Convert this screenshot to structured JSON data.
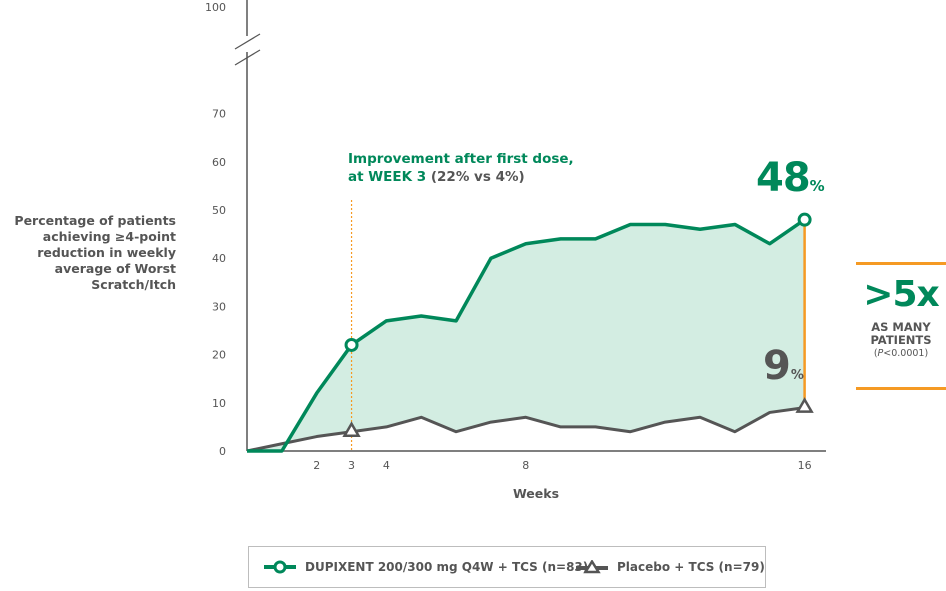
{
  "colors": {
    "dupixent": "#00885a",
    "placebo": "#555555",
    "fill": "#d3ede2",
    "accent": "#f59a23",
    "axis": "#555555"
  },
  "annotation": {
    "line1": "Improvement after first dose,",
    "line2_green": "at WEEK 3",
    "line2_gray": "(22% vs 4%)"
  },
  "end_values": {
    "dupixent_value": "48",
    "placebo_value": "9",
    "percent": "%"
  },
  "callout": {
    "multiplier": ">5x",
    "line1": "AS MANY",
    "line2": "PATIENTS",
    "p_open": "(",
    "p_italic": "P",
    "p_rest": "<0.0001)"
  },
  "chart_data": {
    "type": "line",
    "xlabel": "Weeks",
    "ylabel": "Percentage of patients achieving ≥4-point reduction in weekly average of Worst Scratch/Itch",
    "xlim": [
      0,
      16
    ],
    "ylim": [
      0,
      100
    ],
    "axis_break": true,
    "x_ticks": [
      2,
      3,
      4,
      8,
      16
    ],
    "y_ticks": [
      0,
      10,
      20,
      30,
      40,
      50,
      60,
      70,
      100
    ],
    "grid": false,
    "legend_position": "bottom",
    "series": [
      {
        "name": "DUPIXENT 200/300 mg Q4W + TCS (n=83)",
        "marker": "circle",
        "x": [
          0,
          1,
          2,
          3,
          4,
          5,
          6,
          7,
          8,
          9,
          10,
          11,
          12,
          13,
          14,
          15,
          16
        ],
        "values": [
          0,
          0,
          12,
          22,
          27,
          28,
          27,
          40,
          43,
          44,
          44,
          47,
          47,
          46,
          47,
          43,
          48
        ],
        "end_label": "48%"
      },
      {
        "name": "Placebo + TCS (n=79)",
        "marker": "triangle",
        "x": [
          0,
          1,
          2,
          3,
          4,
          5,
          6,
          7,
          8,
          9,
          10,
          11,
          12,
          13,
          14,
          15,
          16
        ],
        "values": [
          0,
          1.5,
          3,
          4,
          5,
          7,
          4,
          6,
          7,
          5,
          5,
          4,
          6,
          7,
          4,
          8,
          9
        ],
        "end_label": "9%"
      }
    ],
    "annotations": [
      {
        "x": 3,
        "text": "Improvement after first dose, at WEEK 3 (22% vs 4%)"
      },
      {
        "x": 16,
        "text": ">5x AS MANY PATIENTS (P<0.0001)"
      }
    ]
  }
}
